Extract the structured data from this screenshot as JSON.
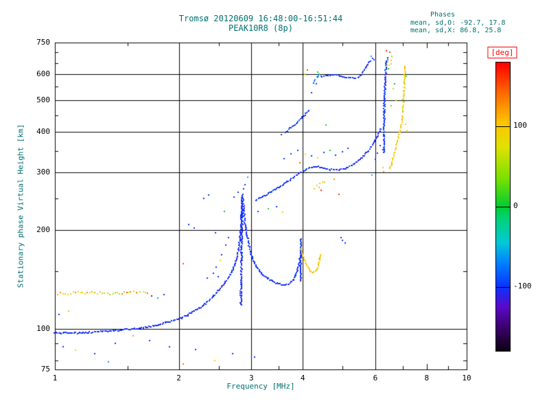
{
  "phases": {
    "title": "Phases",
    "line_o": "mean, sd,O: -92.7, 17.8",
    "line_x": "mean, sd,X:  86.8, 25.8"
  },
  "colors": {
    "text_accent": "#007070",
    "deg_label": "#ff0000"
  },
  "chart_data": {
    "type": "scatter",
    "title": "Tromsø 20120609 16:48:00-16:51:44",
    "subtitle": "PEAK10R8 (8p)",
    "xlabel": "Frequency [MHz]",
    "ylabel": "Stationary phase Virtual Height [km]",
    "xlim": [
      1,
      10
    ],
    "ylim": [
      75,
      750
    ],
    "xlog": true,
    "ylog": true,
    "x_ticks": [
      1,
      2,
      3,
      4,
      6,
      8,
      10
    ],
    "x_gridlines": [
      2,
      3,
      4,
      6
    ],
    "x_minor": [
      1.5,
      2.5,
      3.5,
      5,
      7,
      9
    ],
    "y_ticks": [
      75,
      100,
      200,
      300,
      400,
      500,
      600,
      750
    ],
    "y_gridlines": [
      100,
      200,
      300,
      400,
      500,
      600
    ],
    "y_minor": [
      80,
      90,
      150,
      250,
      350,
      450,
      550,
      650,
      700
    ],
    "color_scale": {
      "label": "[deg]",
      "unit": "deg",
      "min": -180,
      "max": 180,
      "ticks": [
        100,
        0,
        -100
      ]
    },
    "traces": [
      {
        "name": "e-layer",
        "phase": -103,
        "phase_jitter": 10,
        "step": 1.8,
        "points": [
          [
            1.0,
            97
          ],
          [
            1.15,
            97
          ],
          [
            1.3,
            98
          ],
          [
            1.45,
            99
          ],
          [
            1.6,
            100
          ],
          [
            1.75,
            102
          ],
          [
            1.9,
            105
          ],
          [
            2.0,
            107
          ],
          [
            2.1,
            110
          ],
          [
            2.2,
            114
          ],
          [
            2.3,
            118
          ],
          [
            2.4,
            124
          ],
          [
            2.5,
            131
          ],
          [
            2.6,
            139
          ],
          [
            2.68,
            148
          ],
          [
            2.74,
            158
          ],
          [
            2.78,
            170
          ],
          [
            2.81,
            185
          ],
          [
            2.83,
            205
          ],
          [
            2.84,
            228
          ],
          [
            2.85,
            252
          ]
        ]
      },
      {
        "name": "e-spike",
        "phase": -103,
        "phase_jitter": 10,
        "step": 1.4,
        "jx": 1.1,
        "points": [
          [
            2.83,
            118
          ],
          [
            2.84,
            170
          ],
          [
            2.85,
            220
          ],
          [
            2.86,
            258
          ]
        ]
      },
      {
        "name": "f1-descend",
        "phase": -102,
        "phase_jitter": 10,
        "step": 1.8,
        "points": [
          [
            2.87,
            240
          ],
          [
            2.89,
            215
          ],
          [
            2.92,
            196
          ],
          [
            2.96,
            180
          ],
          [
            3.0,
            168
          ],
          [
            3.06,
            158
          ],
          [
            3.14,
            150
          ],
          [
            3.24,
            144
          ],
          [
            3.36,
            140
          ],
          [
            3.48,
            137
          ],
          [
            3.6,
            136
          ],
          [
            3.7,
            137
          ],
          [
            3.78,
            140
          ],
          [
            3.84,
            145
          ],
          [
            3.89,
            152
          ],
          [
            3.93,
            162
          ],
          [
            3.95,
            172
          ]
        ]
      },
      {
        "name": "f1-spike",
        "phase": -100,
        "phase_jitter": 10,
        "step": 1.6,
        "points": [
          [
            3.95,
            140
          ],
          [
            3.96,
            188
          ]
        ]
      },
      {
        "name": "x-low-hook",
        "phase": 100,
        "phase_jitter": 14,
        "step": 1.8,
        "points": [
          [
            3.97,
            176
          ],
          [
            4.01,
            166
          ],
          [
            4.06,
            159
          ],
          [
            4.12,
            154
          ],
          [
            4.18,
            150
          ],
          [
            4.24,
            148
          ],
          [
            4.3,
            150
          ],
          [
            4.35,
            154
          ],
          [
            4.38,
            160
          ],
          [
            4.4,
            168
          ]
        ]
      },
      {
        "name": "f2-main",
        "phase": -101,
        "phase_jitter": 10,
        "step": 1.9,
        "points": [
          [
            3.08,
            248
          ],
          [
            3.2,
            254
          ],
          [
            3.35,
            262
          ],
          [
            3.5,
            271
          ],
          [
            3.65,
            280
          ],
          [
            3.8,
            290
          ],
          [
            3.95,
            300
          ],
          [
            4.1,
            308
          ],
          [
            4.25,
            312
          ],
          [
            4.4,
            312
          ],
          [
            4.55,
            309
          ],
          [
            4.7,
            306
          ],
          [
            4.85,
            306
          ],
          [
            5.0,
            308
          ],
          [
            5.15,
            312
          ],
          [
            5.3,
            318
          ],
          [
            5.45,
            326
          ],
          [
            5.6,
            336
          ],
          [
            5.75,
            349
          ],
          [
            5.9,
            364
          ],
          [
            6.02,
            380
          ],
          [
            6.12,
            396
          ],
          [
            6.2,
            410
          ]
        ]
      },
      {
        "name": "upper-diag",
        "phase": -100,
        "phase_jitter": 10,
        "step": 2.2,
        "points": [
          [
            3.62,
            398
          ],
          [
            3.72,
            410
          ],
          [
            3.82,
            421
          ],
          [
            3.92,
            433
          ],
          [
            4.02,
            447
          ],
          [
            4.1,
            458
          ],
          [
            4.15,
            465
          ]
        ]
      },
      {
        "name": "upper-cluster",
        "phase": -85,
        "phase_jitter": 45,
        "step": 2.4,
        "points": [
          [
            4.26,
            565
          ],
          [
            4.3,
            580
          ],
          [
            4.34,
            592
          ],
          [
            4.38,
            600
          ],
          [
            4.42,
            594
          ],
          [
            4.46,
            590
          ]
        ]
      },
      {
        "name": "top-flat",
        "phase": -100,
        "phase_jitter": 12,
        "step": 2.0,
        "points": [
          [
            4.5,
            592
          ],
          [
            4.62,
            596
          ],
          [
            4.75,
            598
          ],
          [
            4.88,
            595
          ],
          [
            5.0,
            591
          ],
          [
            5.12,
            588
          ],
          [
            5.25,
            586
          ],
          [
            5.38,
            584
          ]
        ]
      },
      {
        "name": "top-rise",
        "phase": -100,
        "phase_jitter": 15,
        "step": 2.0,
        "points": [
          [
            5.45,
            587
          ],
          [
            5.52,
            594
          ],
          [
            5.58,
            604
          ],
          [
            5.64,
            616
          ],
          [
            5.7,
            630
          ],
          [
            5.76,
            644
          ],
          [
            5.8,
            655
          ]
        ]
      },
      {
        "name": "foF2-vertical",
        "phase": -100,
        "phase_jitter": 12,
        "step": 1.5,
        "jx": 1.0,
        "points": [
          [
            6.28,
            345
          ],
          [
            6.3,
            420
          ],
          [
            6.32,
            500
          ],
          [
            6.34,
            570
          ],
          [
            6.36,
            620
          ],
          [
            6.39,
            655
          ],
          [
            6.42,
            675
          ]
        ]
      },
      {
        "name": "x-diag",
        "phase": 98,
        "phase_jitter": 15,
        "step": 2.2,
        "points": [
          [
            6.5,
            308
          ],
          [
            6.56,
            318
          ],
          [
            6.62,
            330
          ],
          [
            6.68,
            344
          ],
          [
            6.74,
            360
          ],
          [
            6.8,
            378
          ],
          [
            6.86,
            396
          ],
          [
            6.92,
            414
          ],
          [
            6.97,
            432
          ],
          [
            7.0,
            448
          ]
        ]
      },
      {
        "name": "x-vertical",
        "phase": 92,
        "phase_jitter": 35,
        "step": 2.2,
        "points": [
          [
            7.0,
            460
          ],
          [
            7.02,
            490
          ],
          [
            7.04,
            520
          ],
          [
            7.06,
            550
          ],
          [
            7.07,
            580
          ],
          [
            7.09,
            610
          ],
          [
            7.1,
            635
          ]
        ]
      },
      {
        "name": "low-band-mixed",
        "phase": 95,
        "phase_jitter": 55,
        "step": 3.5,
        "jx": 1.2,
        "jy": 1.8,
        "points": [
          [
            1.02,
            128
          ],
          [
            1.2,
            129
          ],
          [
            1.4,
            128
          ],
          [
            1.55,
            130
          ],
          [
            1.68,
            128
          ]
        ]
      }
    ],
    "points": [
      [
        1.05,
        88,
        -100
      ],
      [
        1.12,
        86,
        80
      ],
      [
        1.25,
        84,
        -100
      ],
      [
        1.35,
        79,
        -60
      ],
      [
        1.4,
        90,
        -100
      ],
      [
        1.55,
        95,
        120
      ],
      [
        1.7,
        92,
        -100
      ],
      [
        1.9,
        88,
        -100
      ],
      [
        2.05,
        78,
        140
      ],
      [
        2.2,
        86,
        -100
      ],
      [
        2.45,
        80,
        100
      ],
      [
        2.7,
        84,
        -100
      ],
      [
        3.05,
        82,
        -100
      ],
      [
        1.02,
        110,
        -100
      ],
      [
        1.08,
        113,
        60
      ],
      [
        1.72,
        126,
        -110
      ],
      [
        1.78,
        124,
        -60
      ],
      [
        1.84,
        127,
        -100
      ],
      [
        2.05,
        158,
        150
      ],
      [
        2.12,
        208,
        -100
      ],
      [
        2.18,
        204,
        -100
      ],
      [
        2.3,
        250,
        -100
      ],
      [
        2.36,
        256,
        -100
      ],
      [
        2.46,
        196,
        -100
      ],
      [
        2.52,
        162,
        90
      ],
      [
        2.58,
        228,
        0
      ],
      [
        2.72,
        252,
        -100
      ],
      [
        2.78,
        262,
        -100
      ],
      [
        2.35,
        143,
        -100
      ],
      [
        2.42,
        148,
        -100
      ],
      [
        2.47,
        154,
        -100
      ],
      [
        2.5,
        144,
        -100
      ],
      [
        2.55,
        168,
        -100
      ],
      [
        2.6,
        180,
        -100
      ],
      [
        2.64,
        190,
        -100
      ],
      [
        2.87,
        268,
        -100
      ],
      [
        2.9,
        276,
        -100
      ],
      [
        2.94,
        290,
        -55
      ],
      [
        3.12,
        228,
        -100
      ],
      [
        3.3,
        232,
        10
      ],
      [
        3.45,
        236,
        -100
      ],
      [
        3.58,
        228,
        100
      ],
      [
        3.6,
        330,
        -100
      ],
      [
        3.75,
        342,
        -100
      ],
      [
        3.9,
        352,
        -100
      ],
      [
        3.95,
        322,
        150
      ],
      [
        4.05,
        340,
        70
      ],
      [
        4.2,
        338,
        -100
      ],
      [
        4.35,
        332,
        100
      ],
      [
        4.5,
        345,
        -100
      ],
      [
        4.65,
        352,
        0
      ],
      [
        4.8,
        338,
        -100
      ],
      [
        5.0,
        348,
        -100
      ],
      [
        5.15,
        356,
        -100
      ],
      [
        4.28,
        268,
        100
      ],
      [
        4.34,
        274,
        90
      ],
      [
        4.4,
        278,
        105
      ],
      [
        4.46,
        282,
        95
      ],
      [
        4.52,
        280,
        60
      ],
      [
        4.38,
        270,
        110
      ],
      [
        4.44,
        266,
        170
      ],
      [
        4.78,
        286,
        130
      ],
      [
        4.9,
        258,
        160
      ],
      [
        4.96,
        190,
        -100
      ],
      [
        5.0,
        186,
        -100
      ],
      [
        5.06,
        183,
        -100
      ],
      [
        3.55,
        392,
        -100
      ],
      [
        4.2,
        526,
        -100
      ],
      [
        4.3,
        560,
        -100
      ],
      [
        4.56,
        420,
        10
      ],
      [
        4.05,
        600,
        50
      ],
      [
        4.1,
        618,
        150
      ],
      [
        4.35,
        608,
        0
      ],
      [
        5.85,
        660,
        -100
      ],
      [
        5.9,
        672,
        -100
      ],
      [
        5.95,
        665,
        -100
      ],
      [
        5.88,
        680,
        -60
      ],
      [
        5.88,
        296,
        -50
      ],
      [
        6.0,
        330,
        -100
      ],
      [
        6.08,
        344,
        -100
      ],
      [
        6.18,
        362,
        -100
      ],
      [
        6.25,
        312,
        95
      ],
      [
        6.3,
        302,
        110
      ],
      [
        6.38,
        710,
        170
      ],
      [
        6.4,
        640,
        70
      ],
      [
        6.42,
        655,
        90
      ],
      [
        6.44,
        668,
        20
      ],
      [
        6.46,
        625,
        0
      ],
      [
        6.5,
        640,
        80
      ],
      [
        6.52,
        700,
        160
      ],
      [
        6.55,
        662,
        100
      ],
      [
        6.55,
        480,
        30
      ],
      [
        6.58,
        648,
        110
      ],
      [
        6.6,
        682,
        40
      ],
      [
        6.62,
        540,
        60
      ],
      [
        6.68,
        560,
        0
      ],
      [
        6.72,
        500,
        90
      ],
      [
        7.12,
        420,
        100
      ],
      [
        7.15,
        405,
        80
      ],
      [
        7.14,
        590,
        10
      ]
    ]
  }
}
